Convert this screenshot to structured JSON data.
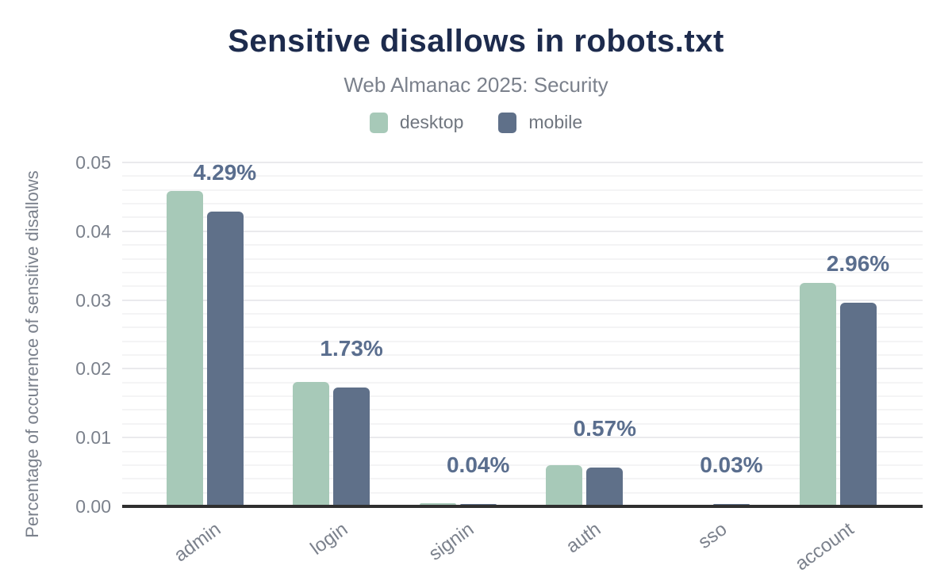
{
  "chart_data": {
    "type": "bar",
    "title": "Sensitive disallows in robots.txt",
    "subtitle": "Web Almanac 2025: Security",
    "categories": [
      "admin",
      "login",
      "signin",
      "auth",
      "sso",
      "account"
    ],
    "series": [
      {
        "name": "desktop",
        "color": "#a7c9b8",
        "values": [
          0.0459,
          0.0181,
          0.0005,
          0.006,
          0.0002,
          0.0325
        ]
      },
      {
        "name": "mobile",
        "color": "#5f7089",
        "values": [
          0.0429,
          0.0173,
          0.0004,
          0.0057,
          0.0003,
          0.0296
        ]
      }
    ],
    "bar_labels": [
      "4.29%",
      "1.73%",
      "0.04%",
      "0.57%",
      "0.03%",
      "2.96%"
    ],
    "bar_labels_series": "mobile",
    "xlabel": "",
    "ylabel": "Percentage of occurrence of sensitive disallows",
    "ylim": [
      0,
      0.05
    ],
    "yticks": [
      0,
      0.01,
      0.02,
      0.03,
      0.04,
      0.05
    ],
    "ytick_labels": [
      "0.00",
      "0.01",
      "0.02",
      "0.03",
      "0.04",
      "0.05"
    ],
    "minor_grid_step": 0.002,
    "grid": true,
    "legend_position": "top"
  },
  "colors": {
    "title": "#1d2b4d",
    "muted_text": "#7b818c",
    "value_label": "#5a6e8e",
    "axis_line": "#2f2f2f",
    "grid_major": "#eaeaed",
    "grid_minor": "#f4f4f5",
    "background": "#ffffff"
  }
}
